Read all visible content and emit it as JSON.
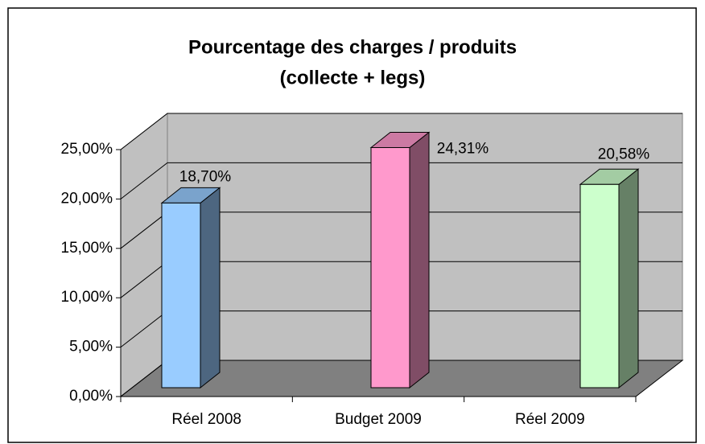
{
  "chart_data": {
    "type": "bar3d",
    "title": [
      "Pourcentage des charges / produits",
      "(collecte + legs)"
    ],
    "categories": [
      "Réel 2008",
      "Budget 2009",
      "Réel  2009"
    ],
    "values": [
      18.7,
      24.31,
      20.58
    ],
    "value_labels": [
      "18,70%",
      "24,31%",
      "20,58%"
    ],
    "colors": [
      "#99ccff",
      "#ff99cc",
      "#ccffcc"
    ],
    "ylim": [
      0,
      25
    ],
    "yticks": [
      {
        "value": 0,
        "label": "0,00%"
      },
      {
        "value": 5,
        "label": "5,00%"
      },
      {
        "value": 10,
        "label": "10,00%"
      },
      {
        "value": 15,
        "label": "15,00%"
      },
      {
        "value": 20,
        "label": "20,00%"
      },
      {
        "value": 25,
        "label": "25,00%"
      }
    ],
    "grid": true
  }
}
